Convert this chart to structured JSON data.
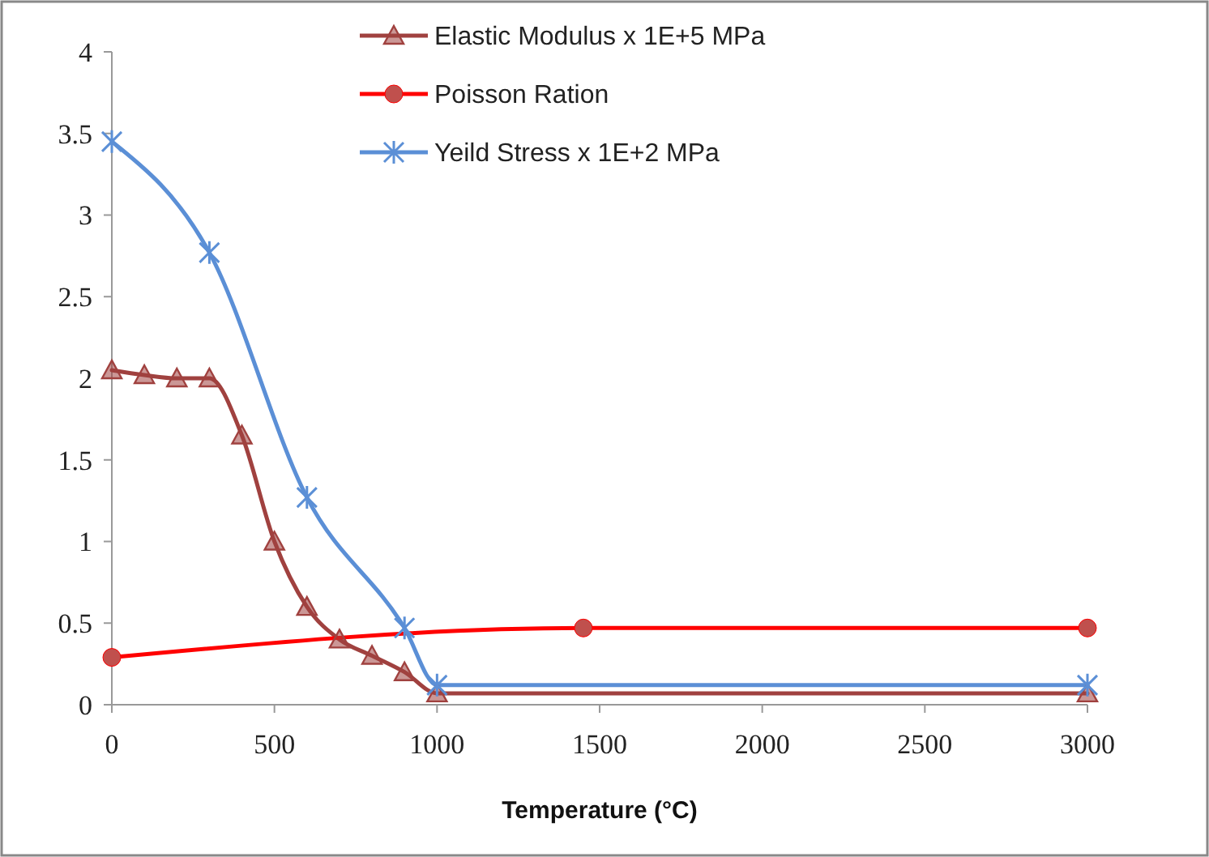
{
  "chart_data": {
    "type": "line",
    "xlabel": "Temperature (°C)",
    "xlim": [
      0,
      3000
    ],
    "xticks": [
      0,
      500,
      1000,
      1500,
      2000,
      2500,
      3000
    ],
    "ylim": [
      0,
      4
    ],
    "yticks": [
      0,
      0.5,
      1,
      1.5,
      2,
      2.5,
      3,
      3.5,
      4
    ],
    "grid": false,
    "legend": "top right",
    "series": [
      {
        "name": "Elastic Modulus x 1E+5 MPa",
        "color": "#a0413f",
        "marker": "triangle",
        "x": [
          0,
          100,
          200,
          300,
          400,
          500,
          600,
          700,
          800,
          900,
          1000,
          3000
        ],
        "values": [
          2.05,
          2.02,
          2.0,
          2.0,
          1.65,
          1.0,
          0.6,
          0.4,
          0.3,
          0.2,
          0.07,
          0.07
        ]
      },
      {
        "name": "Poisson Ration",
        "color": "#ff0000",
        "marker": "circle",
        "x": [
          0,
          1450,
          3000
        ],
        "values": [
          0.29,
          0.47,
          0.47
        ]
      },
      {
        "name": "Yeild Stress x 1E+2 MPa",
        "color": "#5b8fd6",
        "marker": "cross",
        "x": [
          0,
          300,
          600,
          900,
          1000,
          3000
        ],
        "values": [
          3.45,
          2.77,
          1.27,
          0.47,
          0.12,
          0.12
        ]
      }
    ]
  }
}
